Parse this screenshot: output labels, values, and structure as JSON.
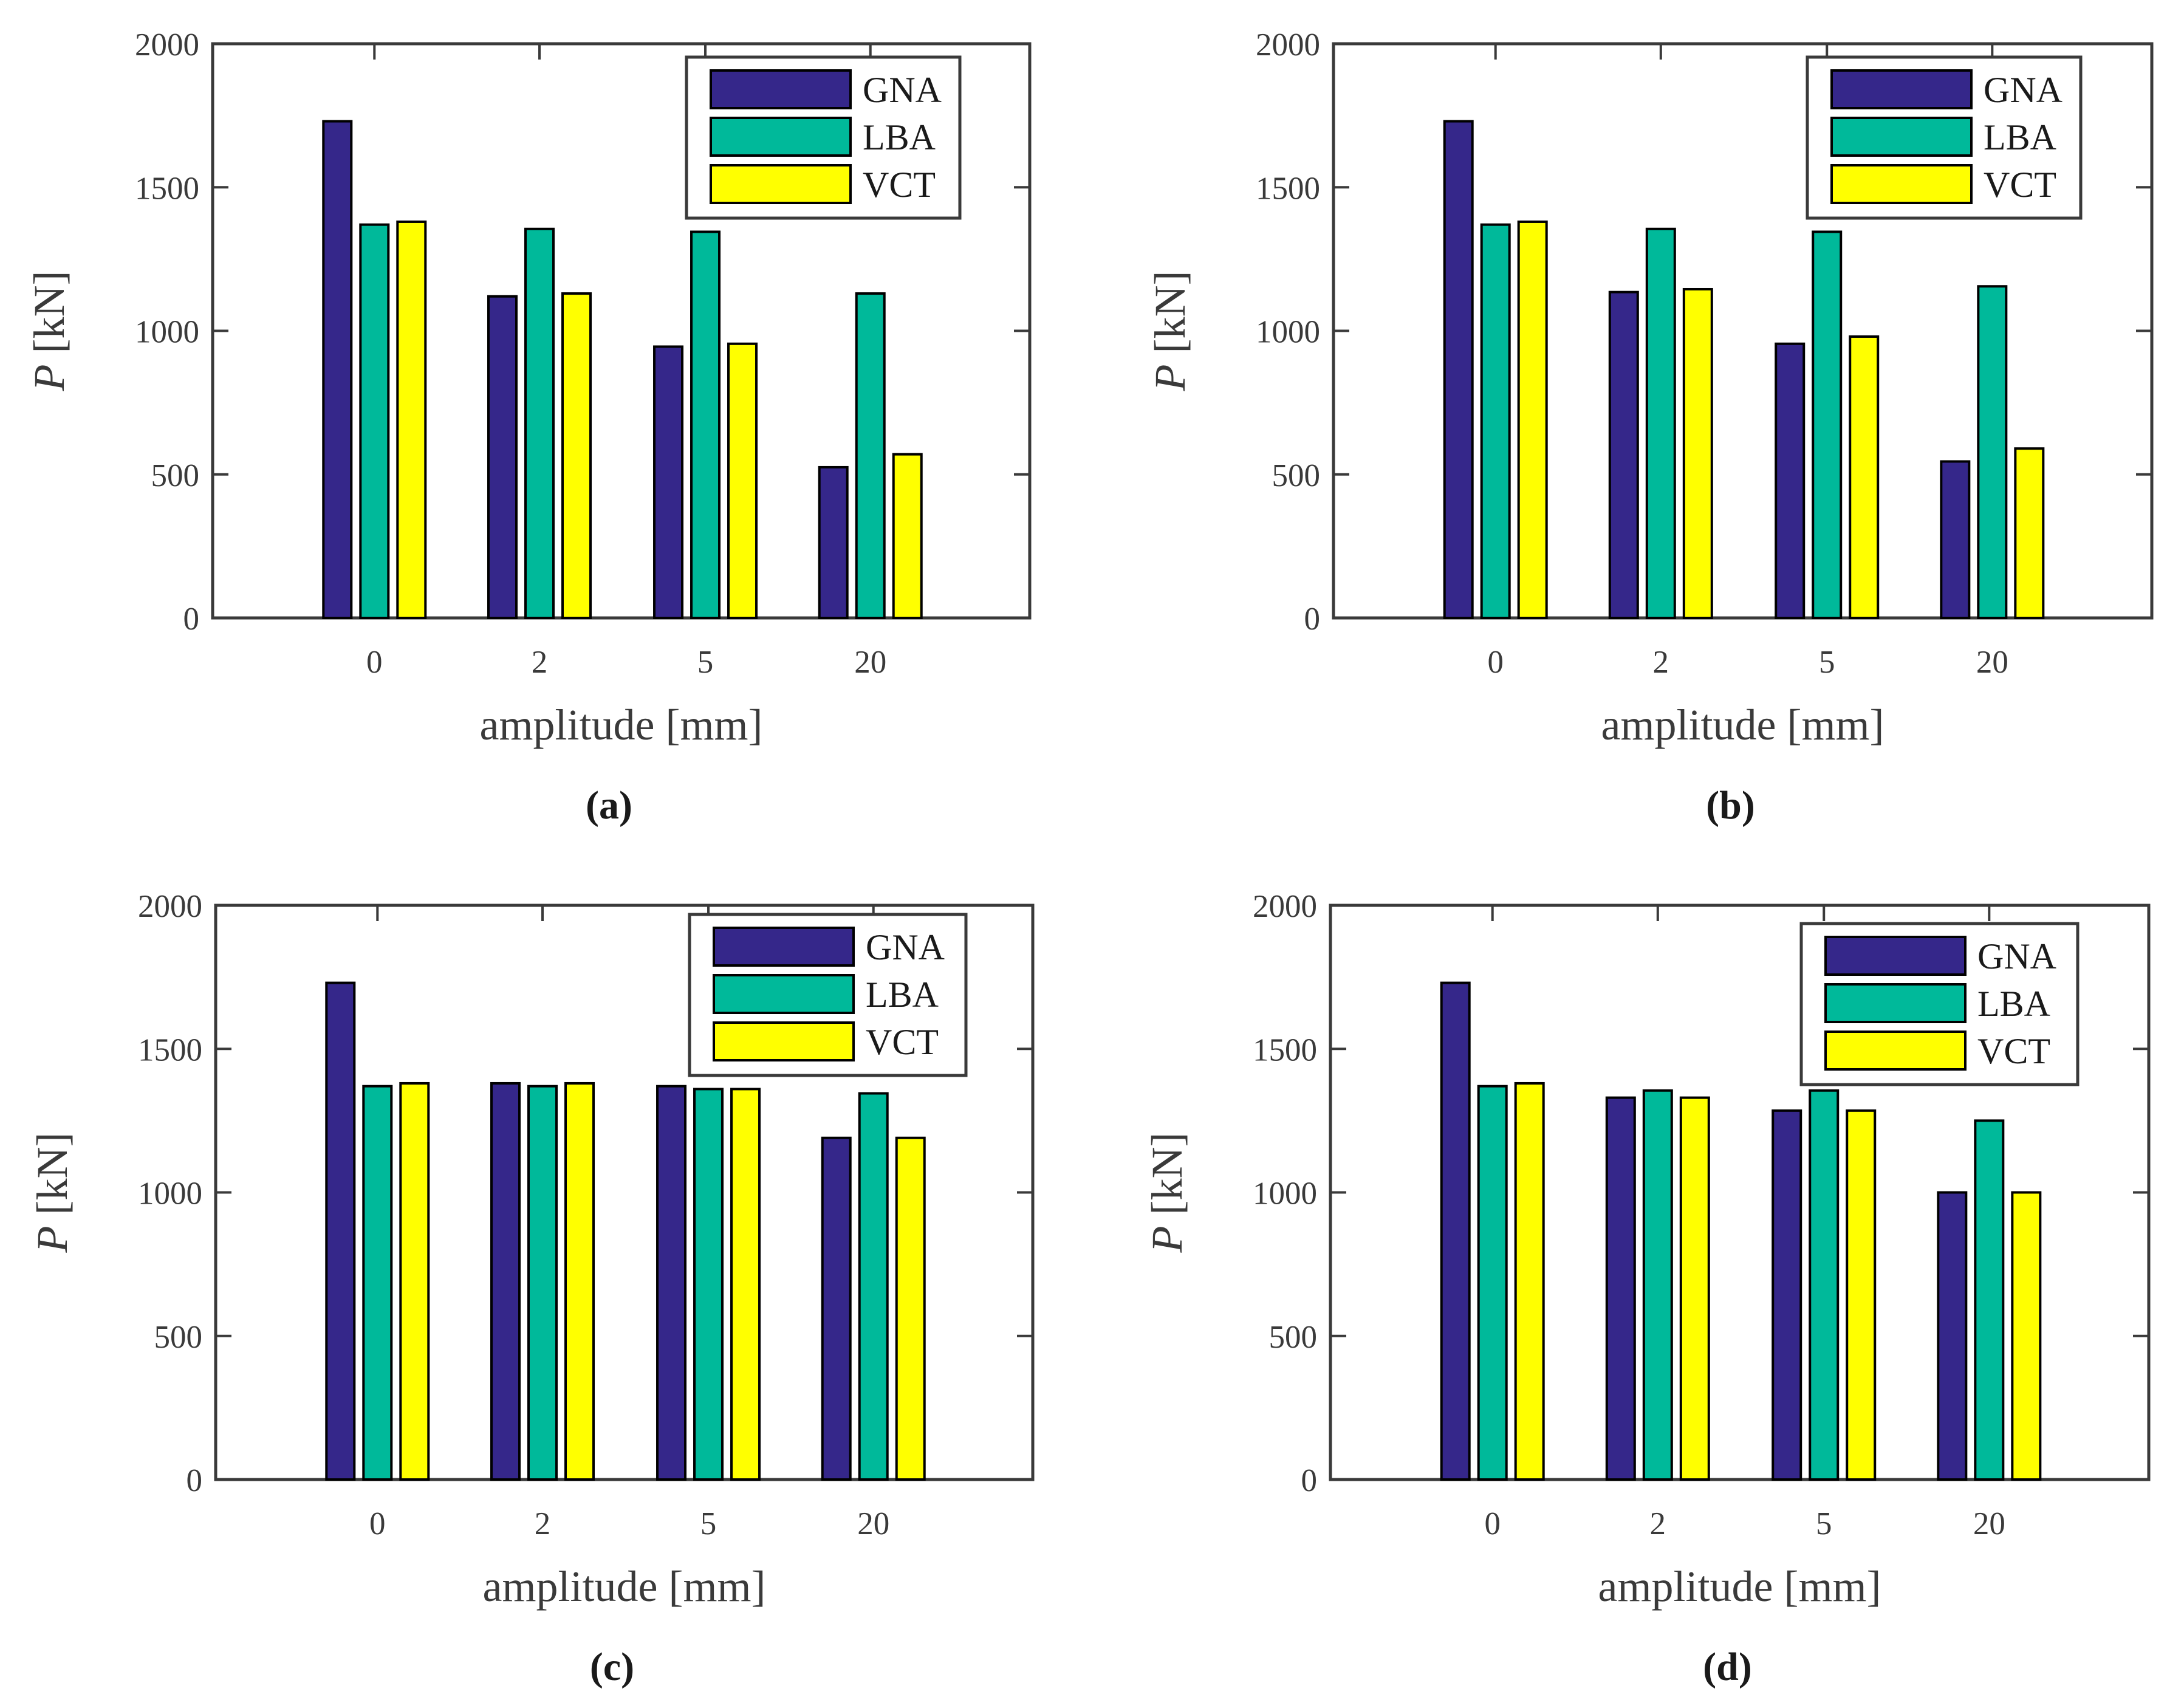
{
  "chart_data": [
    {
      "type": "bar",
      "panel_label": "(a)",
      "categories": [
        "0",
        "2",
        "5",
        "20"
      ],
      "series": [
        {
          "name": "GNA",
          "values": [
            1730,
            1120,
            945,
            525
          ]
        },
        {
          "name": "LBA",
          "values": [
            1370,
            1355,
            1345,
            1130
          ]
        },
        {
          "name": "VCT",
          "values": [
            1380,
            1130,
            955,
            570
          ]
        }
      ],
      "xlabel": "amplitude [mm]",
      "ylabel_symbol": "P",
      "ylabel_unit": "[kN]",
      "ylim": [
        0,
        2000
      ],
      "yticks": [
        "0",
        "500",
        "1000",
        "1500",
        "2000"
      ],
      "legend_placement": "top-right",
      "grid": false
    },
    {
      "type": "bar",
      "panel_label": "(b)",
      "categories": [
        "0",
        "2",
        "5",
        "20"
      ],
      "series": [
        {
          "name": "GNA",
          "values": [
            1730,
            1135,
            955,
            545
          ]
        },
        {
          "name": "LBA",
          "values": [
            1370,
            1355,
            1345,
            1155
          ]
        },
        {
          "name": "VCT",
          "values": [
            1380,
            1145,
            980,
            590
          ]
        }
      ],
      "xlabel": "amplitude [mm]",
      "ylabel_symbol": "P",
      "ylabel_unit": "[kN]",
      "ylim": [
        0,
        2000
      ],
      "yticks": [
        "0",
        "500",
        "1000",
        "1500",
        "2000"
      ],
      "legend_placement": "top-right",
      "grid": false
    },
    {
      "type": "bar",
      "panel_label": "(c)",
      "categories": [
        "0",
        "2",
        "5",
        "20"
      ],
      "series": [
        {
          "name": "GNA",
          "values": [
            1730,
            1380,
            1370,
            1190
          ]
        },
        {
          "name": "LBA",
          "values": [
            1370,
            1370,
            1360,
            1345
          ]
        },
        {
          "name": "VCT",
          "values": [
            1380,
            1380,
            1360,
            1190
          ]
        }
      ],
      "xlabel": "amplitude [mm]",
      "ylabel_symbol": "P",
      "ylabel_unit": "[kN]",
      "ylim": [
        0,
        2000
      ],
      "yticks": [
        "0",
        "500",
        "1000",
        "1500",
        "2000"
      ],
      "legend_placement": "top-right",
      "grid": false
    },
    {
      "type": "bar",
      "panel_label": "(d)",
      "categories": [
        "0",
        "2",
        "5",
        "20"
      ],
      "series": [
        {
          "name": "GNA",
          "values": [
            1730,
            1330,
            1285,
            1000
          ]
        },
        {
          "name": "LBA",
          "values": [
            1370,
            1355,
            1355,
            1250
          ]
        },
        {
          "name": "VCT",
          "values": [
            1380,
            1330,
            1285,
            1000
          ]
        }
      ],
      "xlabel": "amplitude [mm]",
      "ylabel_symbol": "P",
      "ylabel_unit": "[kN]",
      "ylim": [
        0,
        2000
      ],
      "yticks": [
        "0",
        "500",
        "1000",
        "1500",
        "2000"
      ],
      "legend_placement": "top-right",
      "grid": false
    }
  ],
  "colors": {
    "GNA": "#35278a",
    "LBA": "#00b99a",
    "VCT": "#ffff00",
    "axis": "#3a3a3a",
    "bar_edge": "#000000"
  }
}
